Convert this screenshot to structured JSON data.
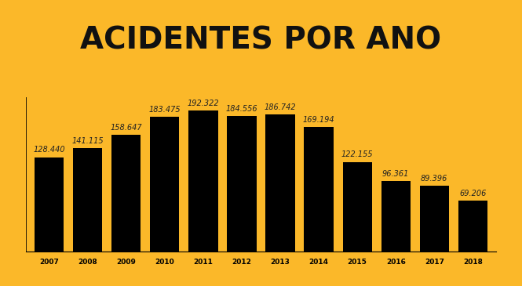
{
  "chart_data": {
    "type": "bar",
    "title": "ACIDENTES POR ANO",
    "categories": [
      "2007",
      "2008",
      "2009",
      "2010",
      "2011",
      "2012",
      "2013",
      "2014",
      "2015",
      "2016",
      "2017",
      "2018"
    ],
    "values": [
      128440,
      141115,
      158647,
      183475,
      192322,
      184556,
      186742,
      169194,
      122155,
      96361,
      89396,
      69206
    ],
    "value_labels": [
      "128.440",
      "141.115",
      "158.647",
      "183.475",
      "192.322",
      "184.556",
      "186.742",
      "169.194",
      "122.155",
      "96.361",
      "89.396",
      "69.206"
    ],
    "color": "#000000",
    "ylim": [
      0,
      210000
    ],
    "data_labels": true,
    "tick_labels": "x",
    "grid": false
  }
}
